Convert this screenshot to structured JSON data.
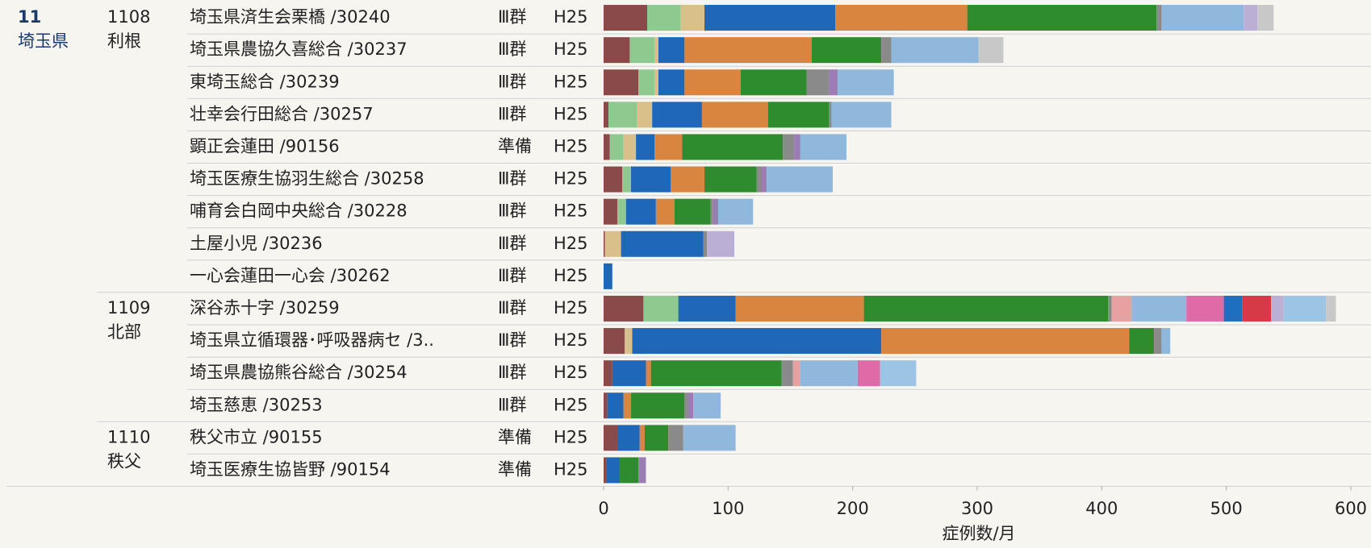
{
  "chart_data": {
    "type": "stacked-barh",
    "prefecture": {
      "code": "11",
      "name": "埼玉県"
    },
    "regions": [
      {
        "code": "1108",
        "name": "利根"
      },
      {
        "code": "1109",
        "name": "北部"
      },
      {
        "code": "1110",
        "name": "秩父"
      }
    ],
    "categories": [
      "埼玉県済生会栗橋 /30240",
      "埼玉県農協久喜総合 /30237",
      "東埼玉総合 /30239",
      "壮幸会行田総合 /30257",
      "顕正会蓮田 /90156",
      "埼玉医療生協羽生総合 /30258",
      "哺育会白岡中央総合 /30228",
      "土屋小児 /30236",
      "一心会蓮田一心会 /30262",
      "深谷赤十字 /30259",
      "埼玉県立循環器･呼吸器病セ /3..",
      "埼玉県農協熊谷総合 /30254",
      "埼玉慈恵 /30253",
      "秩父市立 /90155",
      "埼玉医療生協皆野 /90154"
    ],
    "groups": [
      "Ⅲ群",
      "Ⅲ群",
      "Ⅲ群",
      "Ⅲ群",
      "準備",
      "Ⅲ群",
      "Ⅲ群",
      "Ⅲ群",
      "Ⅲ群",
      "Ⅲ群",
      "Ⅲ群",
      "Ⅲ群",
      "Ⅲ群",
      "準備",
      "準備"
    ],
    "years": [
      "H25",
      "H25",
      "H25",
      "H25",
      "H25",
      "H25",
      "H25",
      "H25",
      "H25",
      "H25",
      "H25",
      "H25",
      "H25",
      "H25",
      "H25"
    ],
    "series": [
      {
        "color": "#8b4a4a",
        "values": [
          35,
          21,
          28,
          4,
          5,
          15,
          11,
          1,
          0,
          32,
          17,
          7,
          3,
          11,
          2
        ]
      },
      {
        "color": "#8fc98f",
        "values": [
          27,
          20,
          13,
          23,
          11,
          7,
          7,
          0,
          0,
          28,
          0,
          0,
          0,
          0,
          0
        ]
      },
      {
        "color": "#d9c08a",
        "values": [
          19,
          3,
          3,
          12,
          10,
          0,
          0,
          13,
          0,
          0,
          6,
          0,
          0,
          0,
          0
        ]
      },
      {
        "color": "#1f67b8",
        "values": [
          105,
          21,
          21,
          40,
          15,
          32,
          24,
          66,
          7,
          46,
          200,
          27,
          13,
          18,
          11
        ]
      },
      {
        "color": "#d9843f",
        "values": [
          106,
          102,
          45,
          53,
          22,
          27,
          15,
          0,
          0,
          103,
          199,
          4,
          6,
          4,
          0
        ]
      },
      {
        "color": "#2e8b2e",
        "values": [
          152,
          56,
          53,
          49,
          81,
          42,
          29,
          0,
          0,
          196,
          20,
          105,
          43,
          19,
          15
        ]
      },
      {
        "color": "#8a8a8a",
        "values": [
          4,
          8,
          18,
          2,
          9,
          4,
          2,
          3,
          0,
          3,
          6,
          9,
          3,
          12,
          0
        ]
      },
      {
        "color": "#9a7db3",
        "values": [
          0,
          0,
          7,
          0,
          5,
          4,
          4,
          0,
          0,
          0,
          0,
          0,
          4,
          0,
          6
        ]
      },
      {
        "color": "#e8a0a0",
        "values": [
          0,
          0,
          0,
          0,
          0,
          0,
          0,
          0,
          0,
          16,
          0,
          6,
          0,
          0,
          0
        ]
      },
      {
        "color": "#8fb8dc",
        "values": [
          66,
          70,
          45,
          48,
          37,
          53,
          28,
          0,
          0,
          44,
          7,
          46,
          22,
          42,
          0
        ]
      },
      {
        "color": "#e06aa8",
        "values": [
          0,
          0,
          0,
          0,
          0,
          0,
          0,
          0,
          0,
          30,
          0,
          18,
          0,
          0,
          0
        ]
      },
      {
        "color": "#1e6fc0",
        "values": [
          0,
          0,
          0,
          0,
          0,
          0,
          0,
          0,
          0,
          15,
          0,
          0,
          0,
          0,
          0
        ]
      },
      {
        "color": "#d63a46",
        "values": [
          0,
          0,
          0,
          0,
          0,
          0,
          0,
          0,
          0,
          23,
          0,
          0,
          0,
          0,
          0
        ]
      },
      {
        "color": "#bbafd6",
        "values": [
          11,
          0,
          0,
          0,
          0,
          0,
          0,
          22,
          0,
          10,
          0,
          0,
          0,
          0,
          0
        ]
      },
      {
        "color": "#9cc4e4",
        "values": [
          0,
          0,
          0,
          0,
          0,
          0,
          0,
          0,
          0,
          34,
          0,
          29,
          0,
          0,
          0
        ]
      },
      {
        "color": "#c8c8c8",
        "values": [
          13,
          20,
          0,
          0,
          0,
          0,
          0,
          0,
          0,
          8,
          0,
          0,
          0,
          0,
          0
        ]
      }
    ],
    "xlim": [
      0,
      600
    ],
    "xticks": [
      0,
      100,
      200,
      300,
      400,
      500,
      600
    ],
    "xlabel": "症例数/月"
  }
}
